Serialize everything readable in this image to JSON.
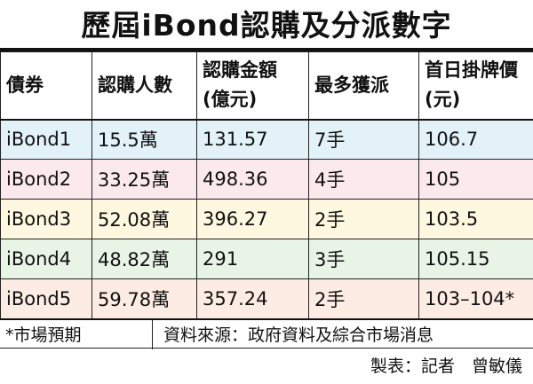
{
  "title": "歷屆iBond認購及分派數字",
  "table": {
    "headers": [
      [
        "債券"
      ],
      [
        "認購人數"
      ],
      [
        "認購金額",
        "(億元)"
      ],
      [
        "最多獲派"
      ],
      [
        "首日掛牌價",
        "(元)"
      ]
    ],
    "rows": [
      [
        "iBond1",
        "15.5萬",
        "131.57",
        "7手",
        "106.7"
      ],
      [
        "iBond2",
        "33.25萬",
        "498.36",
        "4手",
        "105"
      ],
      [
        "iBond3",
        "52.08萬",
        "396.27",
        "2手",
        "103.5"
      ],
      [
        "iBond4",
        "48.82萬",
        "291",
        "3手",
        "105.15"
      ],
      [
        "iBond5",
        "59.78萬",
        "357.24",
        "2手",
        "103–104*"
      ]
    ],
    "row_colors": [
      "#e3f1f8",
      "#fbe9ee",
      "#fdf8df",
      "#e8f4e6",
      "#fdece3"
    ]
  },
  "footer": {
    "note": "*市場預期",
    "source": "資料來源：政府資料及綜合市場消息",
    "credit": "製表：記者　曾敏儀"
  }
}
